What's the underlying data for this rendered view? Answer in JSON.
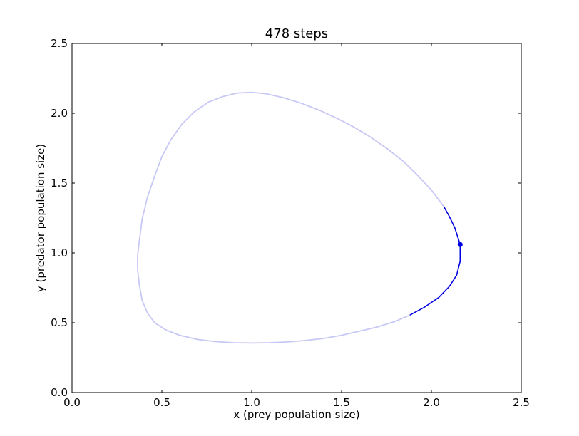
{
  "chart_data": {
    "type": "line",
    "title": "478 steps",
    "xlabel": "x (prey population size)",
    "ylabel": "y (predator population size)",
    "xlim": [
      0.0,
      2.5
    ],
    "ylim": [
      0.0,
      2.5
    ],
    "xticks": [
      "0.0",
      "0.5",
      "1.0",
      "1.5",
      "2.0",
      "2.5"
    ],
    "yticks": [
      "0.0",
      "0.5",
      "1.0",
      "1.5",
      "2.0",
      "2.5"
    ],
    "grid": false,
    "colors": {
      "trail": "#c8c8f5",
      "recent": "#0000e0",
      "marker": "#0000e0"
    },
    "series": [
      {
        "role": "trail",
        "x": [
          2.07,
          2.0,
          1.92,
          1.84,
          1.75,
          1.66,
          1.57,
          1.48,
          1.38,
          1.28,
          1.18,
          1.08,
          1.0,
          0.92,
          0.84,
          0.76,
          0.68,
          0.61,
          0.55,
          0.5,
          0.46,
          0.42,
          0.39,
          0.375,
          0.365,
          0.365,
          0.375,
          0.39,
          0.42,
          0.46,
          0.52,
          0.6,
          0.7,
          0.8,
          0.9,
          1.0,
          1.1,
          1.2,
          1.3,
          1.4,
          1.5,
          1.6,
          1.7,
          1.8,
          1.88
        ],
        "y": [
          1.33,
          1.45,
          1.56,
          1.66,
          1.75,
          1.83,
          1.9,
          1.96,
          2.02,
          2.07,
          2.11,
          2.14,
          2.15,
          2.145,
          2.12,
          2.08,
          2.01,
          1.92,
          1.81,
          1.69,
          1.55,
          1.4,
          1.24,
          1.09,
          0.98,
          0.88,
          0.77,
          0.66,
          0.57,
          0.5,
          0.45,
          0.41,
          0.38,
          0.365,
          0.357,
          0.355,
          0.357,
          0.363,
          0.373,
          0.388,
          0.41,
          0.44,
          0.47,
          0.51,
          0.555
        ]
      },
      {
        "role": "recent",
        "x": [
          1.88,
          1.96,
          2.04,
          2.1,
          2.14,
          2.16,
          2.16,
          2.15,
          2.13,
          2.1,
          2.07
        ],
        "y": [
          0.555,
          0.61,
          0.68,
          0.76,
          0.84,
          0.94,
          1.06,
          1.1,
          1.18,
          1.26,
          1.33
        ]
      }
    ],
    "current_point": {
      "x": 2.16,
      "y": 1.06
    }
  }
}
